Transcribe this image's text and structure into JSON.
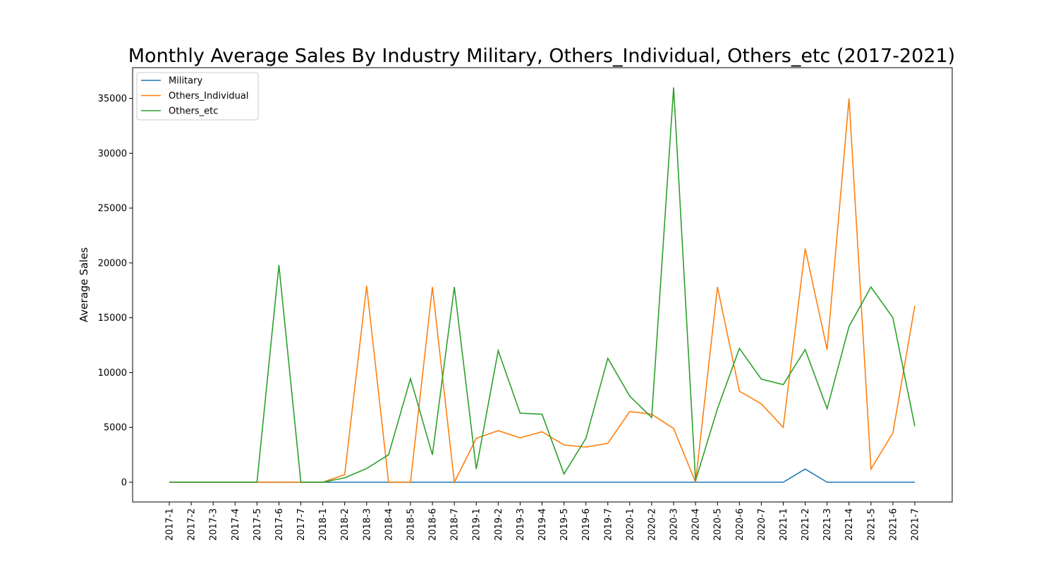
{
  "chart_data": {
    "type": "line",
    "title": "Monthly Average Sales By Industry Military, Others_Individual, Others_etc (2017-2021)",
    "xlabel": "",
    "ylabel": "Average Sales",
    "ylim": [
      -1800,
      37800
    ],
    "yticks": [
      0,
      5000,
      10000,
      15000,
      20000,
      25000,
      30000,
      35000
    ],
    "grid": false,
    "legend_position": "top-left",
    "categories": [
      "2017-1",
      "2017-2",
      "2017-3",
      "2017-4",
      "2017-5",
      "2017-6",
      "2017-7",
      "2018-1",
      "2018-2",
      "2018-3",
      "2018-4",
      "2018-5",
      "2018-6",
      "2018-7",
      "2019-1",
      "2019-2",
      "2019-3",
      "2019-4",
      "2019-5",
      "2019-6",
      "2019-7",
      "2020-1",
      "2020-2",
      "2020-3",
      "2020-4",
      "2020-5",
      "2020-6",
      "2020-7",
      "2021-1",
      "2021-2",
      "2021-3",
      "2021-4",
      "2021-5",
      "2021-6",
      "2021-7"
    ],
    "series": [
      {
        "name": "Military",
        "color": "#1f77b4",
        "values": [
          0,
          0,
          0,
          0,
          0,
          0,
          0,
          0,
          0,
          0,
          0,
          0,
          0,
          0,
          0,
          0,
          0,
          0,
          0,
          0,
          0,
          0,
          0,
          0,
          0,
          0,
          0,
          0,
          0,
          1200,
          0,
          0,
          0,
          0,
          0
        ]
      },
      {
        "name": "Others_Individual",
        "color": "#ff7f0e",
        "values": [
          0,
          0,
          0,
          0,
          0,
          0,
          0,
          0,
          700,
          17900,
          0,
          0,
          17800,
          0,
          4000,
          4700,
          4050,
          4600,
          3400,
          3200,
          3550,
          6450,
          6200,
          4900,
          0,
          17800,
          8300,
          7150,
          5000,
          21300,
          12100,
          35000,
          1200,
          4500,
          16100
        ]
      },
      {
        "name": "Others_etc",
        "color": "#2ca02c",
        "values": [
          0,
          0,
          0,
          0,
          0,
          19800,
          0,
          0,
          400,
          1250,
          2500,
          9450,
          2500,
          17800,
          1200,
          12000,
          6300,
          6200,
          750,
          4000,
          11300,
          7850,
          5900,
          36000,
          150,
          6700,
          12200,
          9400,
          8900,
          12100,
          6700,
          14200,
          17800,
          15000,
          5100
        ]
      }
    ]
  }
}
